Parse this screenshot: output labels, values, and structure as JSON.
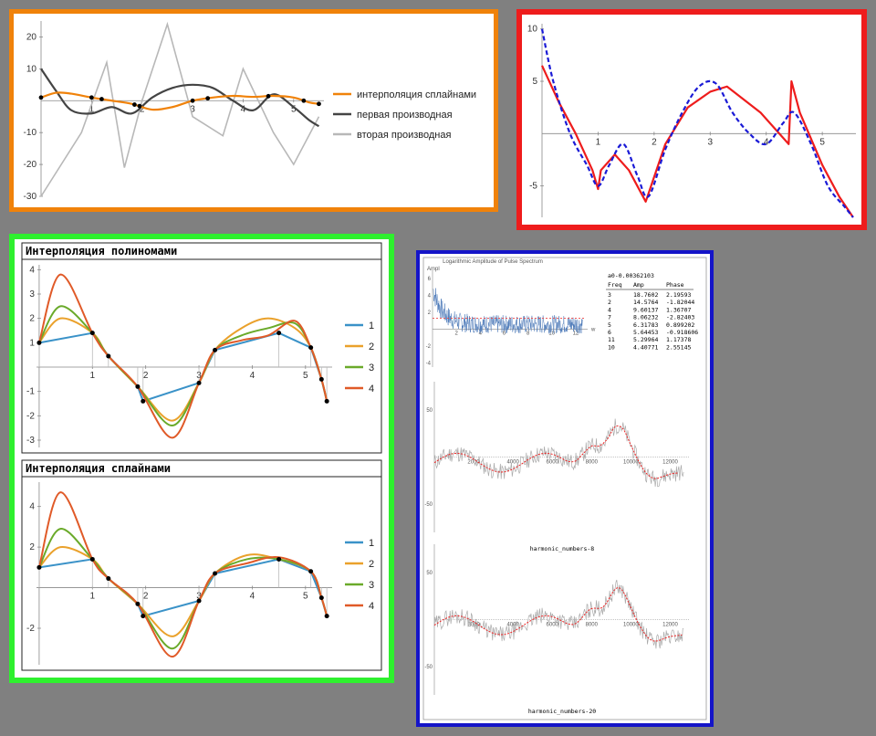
{
  "colors": {
    "orange": "#f0820a",
    "red": "#ee1c1c",
    "green": "#2ef02e",
    "blue": "#1414c8",
    "s1": "#3a92c8",
    "s2": "#eaa12b",
    "s3": "#6aaa2a",
    "s4": "#e05a28"
  },
  "chart_data": [
    {
      "type": "line",
      "xlim": [
        0,
        5.6
      ],
      "ylim": [
        -30,
        25
      ],
      "xticks": [
        "1",
        "2",
        "3",
        "4",
        "5"
      ],
      "yticks": [
        "20",
        "10",
        "-10",
        "-20",
        "-30"
      ],
      "points_x": [
        0,
        1,
        1.2,
        1.85,
        1.95,
        3,
        3.3,
        4.5,
        5.2,
        5.5
      ],
      "series": [
        {
          "name": "интерполяция сплайнами",
          "color": "#f0820a",
          "x": [
            0,
            0.3,
            0.6,
            1,
            1.4,
            1.8,
            2.2,
            2.6,
            3,
            3.4,
            3.8,
            4.2,
            4.6,
            5,
            5.3,
            5.5
          ],
          "y": [
            1,
            2.5,
            2.2,
            1,
            0,
            -1,
            -2.8,
            -2,
            0,
            1,
            1.5,
            1.2,
            1.5,
            1,
            -0.5,
            -1
          ]
        },
        {
          "name": "первая производная",
          "color": "#444444",
          "x": [
            0,
            0.3,
            0.6,
            1,
            1.4,
            1.8,
            2.2,
            2.6,
            3,
            3.4,
            3.8,
            4.2,
            4.6,
            5,
            5.3,
            5.5
          ],
          "y": [
            10,
            3,
            -3,
            -4,
            -2,
            -4,
            1,
            4,
            5,
            4,
            0,
            -3,
            2,
            -2,
            -6,
            -8
          ]
        },
        {
          "name": "вторая производная",
          "color": "#b8b8b8",
          "x": [
            0,
            0.8,
            1.3,
            1.65,
            2.0,
            2.5,
            3.0,
            3.6,
            4.0,
            4.6,
            5.0,
            5.5
          ],
          "y": [
            -30,
            -10,
            12,
            -21,
            0,
            24,
            -5,
            -11,
            10,
            -10,
            -20,
            -5
          ]
        }
      ]
    },
    {
      "type": "line",
      "xlim": [
        0,
        5.6
      ],
      "ylim": [
        -8,
        10.5
      ],
      "xticks": [
        "1",
        "2",
        "3",
        "4",
        "5"
      ],
      "yticks": [
        "10",
        "5",
        "-5"
      ],
      "series": [
        {
          "color": "#ee1c1c",
          "style": "solid",
          "x": [
            0,
            0.3,
            0.6,
            0.9,
            1,
            1.05,
            1.3,
            1.55,
            1.85,
            2.2,
            2.6,
            3,
            3.3,
            3.9,
            4.4,
            4.45,
            4.6,
            5,
            5.3,
            5.55
          ],
          "y": [
            6.5,
            3,
            0,
            -3.5,
            -5.3,
            -3.5,
            -2,
            -3.5,
            -6.5,
            -1,
            2.5,
            4,
            4.5,
            2,
            -1,
            5,
            2,
            -3,
            -6,
            -8
          ]
        },
        {
          "color": "#1a1ad6",
          "style": "dashed",
          "x": [
            0,
            0.2,
            0.5,
            0.8,
            1,
            1.2,
            1.45,
            1.7,
            1.9,
            2.2,
            2.5,
            2.8,
            3.1,
            3.4,
            3.7,
            4,
            4.3,
            4.5,
            4.8,
            5.1,
            5.4,
            5.55
          ],
          "y": [
            10,
            5,
            0,
            -3,
            -5,
            -3,
            -1,
            -4,
            -6,
            -1.5,
            2,
            4.5,
            4.8,
            2,
            0,
            -1,
            1,
            2,
            -1,
            -5,
            -7,
            -8
          ]
        }
      ]
    },
    {
      "type": "line",
      "title": "Интерполяция полиномами",
      "xlim": [
        -0.05,
        5.5
      ],
      "ylim": [
        -3.3,
        4.2
      ],
      "xticks": [
        "1",
        "2",
        "3",
        "4",
        "5"
      ],
      "yticks": [
        "4",
        "3",
        "2",
        "1",
        "-1",
        "-2",
        "-3"
      ],
      "points": [
        [
          0,
          1
        ],
        [
          1,
          1.4
        ],
        [
          1.3,
          0.45
        ],
        [
          1.85,
          -0.8
        ],
        [
          1.95,
          -1.4
        ],
        [
          3,
          -0.65
        ],
        [
          3.3,
          0.7
        ],
        [
          4.5,
          1.4
        ],
        [
          5.1,
          0.8
        ],
        [
          5.3,
          -0.5
        ],
        [
          5.4,
          -1.4
        ]
      ],
      "series": [
        {
          "name": "1",
          "color": "#3a92c8",
          "x": [
            0,
            1,
            1.3,
            1.85,
            1.95,
            3,
            3.3,
            4.5,
            5.1,
            5.3,
            5.4
          ],
          "y": [
            1,
            1.4,
            0.45,
            -0.8,
            -1.4,
            -0.65,
            0.7,
            1.4,
            0.8,
            -0.5,
            -1.4
          ]
        },
        {
          "name": "2",
          "color": "#eaa12b",
          "x": [
            0,
            0.4,
            1,
            1.3,
            1.85,
            2.5,
            3,
            3.3,
            3.8,
            4.3,
            4.8,
            5.1,
            5.3,
            5.4
          ],
          "y": [
            1,
            2,
            1.4,
            0.45,
            -0.8,
            -2.2,
            -0.65,
            0.7,
            1.6,
            2,
            1.6,
            0.8,
            -0.5,
            -1.4
          ]
        },
        {
          "name": "3",
          "color": "#6aaa2a",
          "x": [
            0,
            0.4,
            1,
            1.3,
            1.85,
            2.5,
            3,
            3.3,
            3.8,
            4.3,
            4.8,
            5.1,
            5.3,
            5.4
          ],
          "y": [
            1,
            2.5,
            1.4,
            0.45,
            -0.8,
            -2.4,
            -0.65,
            0.7,
            1.3,
            1.6,
            1.8,
            0.8,
            -0.5,
            -1.4
          ]
        },
        {
          "name": "4",
          "color": "#e05a28",
          "x": [
            0,
            0.4,
            1,
            1.3,
            1.85,
            2.5,
            3,
            3.3,
            3.8,
            4.3,
            4.8,
            5.1,
            5.3,
            5.4
          ],
          "y": [
            1,
            3.8,
            1.4,
            0.45,
            -0.8,
            -2.9,
            -0.65,
            0.7,
            1.1,
            1.3,
            1.9,
            0.8,
            -0.5,
            -1.4
          ]
        }
      ]
    },
    {
      "type": "line",
      "title": "Интерполяция сплайнами",
      "xlim": [
        -0.05,
        5.5
      ],
      "ylim": [
        -3.8,
        5.2
      ],
      "xticks": [
        "1",
        "2",
        "3",
        "4",
        "5"
      ],
      "yticks": [
        "4",
        "2",
        "-2"
      ],
      "points": [
        [
          0,
          1
        ],
        [
          1,
          1.4
        ],
        [
          1.3,
          0.45
        ],
        [
          1.85,
          -0.8
        ],
        [
          1.95,
          -1.4
        ],
        [
          3,
          -0.65
        ],
        [
          3.3,
          0.7
        ],
        [
          4.5,
          1.4
        ],
        [
          5.1,
          0.8
        ],
        [
          5.3,
          -0.5
        ],
        [
          5.4,
          -1.4
        ]
      ],
      "series": [
        {
          "name": "1",
          "color": "#3a92c8",
          "x": [
            0,
            1,
            1.3,
            1.85,
            1.95,
            3,
            3.3,
            4.5,
            5.1,
            5.3,
            5.4
          ],
          "y": [
            1,
            1.4,
            0.45,
            -0.8,
            -1.4,
            -0.65,
            0.7,
            1.4,
            0.8,
            -0.5,
            -1.4
          ]
        },
        {
          "name": "2",
          "color": "#eaa12b",
          "x": [
            0,
            0.4,
            1,
            1.3,
            1.85,
            2.5,
            3,
            3.3,
            3.9,
            4.5,
            5.1,
            5.3,
            5.4
          ],
          "y": [
            1,
            2,
            1.4,
            0.45,
            -0.8,
            -2.4,
            -0.65,
            0.7,
            1.6,
            1.4,
            0.8,
            -0.5,
            -1.4
          ]
        },
        {
          "name": "3",
          "color": "#6aaa2a",
          "x": [
            0,
            0.4,
            1,
            1.3,
            1.85,
            2.5,
            3,
            3.3,
            3.9,
            4.5,
            5.1,
            5.3,
            5.4
          ],
          "y": [
            1,
            2.9,
            1.4,
            0.45,
            -0.8,
            -3,
            -0.65,
            0.7,
            1.4,
            1.4,
            0.8,
            -0.5,
            -1.4
          ]
        },
        {
          "name": "4",
          "color": "#e05a28",
          "x": [
            0,
            0.4,
            1,
            1.3,
            1.85,
            2.5,
            3,
            3.3,
            3.9,
            4.5,
            5.1,
            5.3,
            5.4
          ],
          "y": [
            1,
            4.7,
            1.4,
            0.45,
            -0.8,
            -3.4,
            -0.65,
            0.7,
            1.2,
            1.5,
            0.8,
            -0.5,
            -1.4
          ]
        }
      ]
    },
    {
      "type": "line",
      "title": "Logarithmic Amplitude of Pulse Spectrum",
      "ylabel": "Ampl",
      "xlabel": "w",
      "xticks": [
        "2",
        "4",
        "6",
        "8",
        "10",
        "12"
      ],
      "yticks": [
        "6",
        "4",
        "2",
        "-2",
        "-4"
      ],
      "table": {
        "header_line": "a0-0.00362103",
        "columns": [
          "Freq",
          "Amp",
          "Phase"
        ],
        "rows": [
          [
            "3",
            "18.7602",
            "2.19593"
          ],
          [
            "2",
            "14.5764",
            "-1.82044"
          ],
          [
            "4",
            "9.60137",
            "1.36707"
          ],
          [
            "7",
            "8.06232",
            "-2.82403"
          ],
          [
            "5",
            "6.31783",
            "0.899202"
          ],
          [
            "6",
            "5.64453",
            "-0.918606"
          ],
          [
            "11",
            "5.29964",
            "1.17378"
          ],
          [
            "10",
            "4.40771",
            "2.55145"
          ]
        ]
      }
    },
    {
      "type": "line",
      "caption": "harmonic_numbers-8",
      "xlim": [
        0,
        13000
      ],
      "ylim": [
        -80,
        80
      ],
      "xticks": [
        "2000",
        "4000",
        "6000",
        "8000",
        "10000",
        "12000"
      ],
      "yticks": [
        "50",
        "-50"
      ]
    },
    {
      "type": "line",
      "caption": "harmonic_numbers-20",
      "xlim": [
        0,
        13000
      ],
      "ylim": [
        -80,
        80
      ],
      "xticks": [
        "2000",
        "4000",
        "6000",
        "8000",
        "10000",
        "12000"
      ],
      "yticks": [
        "50",
        "-50"
      ]
    }
  ]
}
